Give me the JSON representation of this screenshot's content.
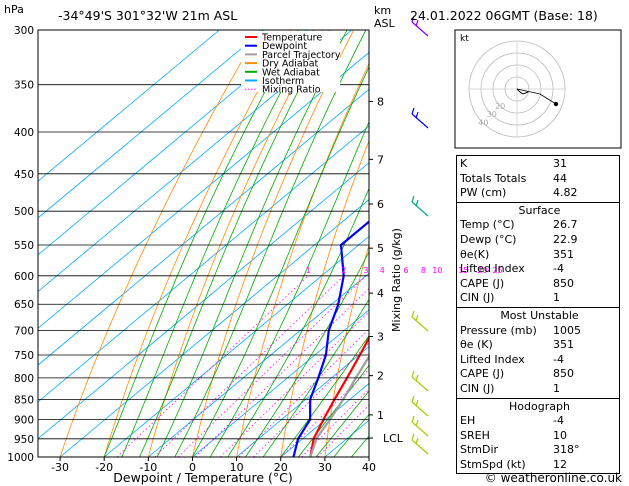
{
  "header": {
    "location": "-34°49'S  301°32'W  21m  ASL",
    "datetime": "24.01.2022  06GMT  (Base: 18)",
    "hpa_unit": "hPa",
    "km_unit": "km",
    "asl_unit": "ASL"
  },
  "chart_data": {
    "type": "line",
    "title": "",
    "xlabel": "Dewpoint / Temperature (°C)",
    "ylabel": "hPa",
    "right_label": "Mixing Ratio (g/kg)",
    "xlim": [
      -35,
      40
    ],
    "ylim": [
      1000,
      300
    ],
    "pressure_ticks": [
      300,
      350,
      400,
      450,
      500,
      550,
      600,
      650,
      700,
      750,
      800,
      850,
      900,
      950,
      1000
    ],
    "temp_ticks": [
      -30,
      -20,
      -10,
      0,
      10,
      20,
      30,
      40
    ],
    "km_ticks": [
      {
        "km": "8",
        "p": 367
      },
      {
        "km": "7",
        "p": 432
      },
      {
        "km": "6",
        "p": 490
      },
      {
        "km": "5",
        "p": 555
      },
      {
        "km": "4",
        "p": 630
      },
      {
        "km": "3",
        "p": 712
      },
      {
        "km": "2",
        "p": 795
      },
      {
        "km": "1",
        "p": 888
      }
    ],
    "lcl": {
      "label": "LCL",
      "p": 948
    },
    "mixing_ratio_labels": [
      "1",
      "2",
      "3",
      "4",
      "6",
      "8",
      "10",
      "15",
      "20",
      "25"
    ],
    "mixing_ratio_values": [
      1,
      2,
      3,
      4,
      6,
      8,
      10,
      15,
      20,
      25
    ],
    "legend": {
      "placement": "top-left",
      "items": [
        {
          "name": "Temperature",
          "color": "#ff0000"
        },
        {
          "name": "Dewpoint",
          "color": "#0000ff"
        },
        {
          "name": "Parcel Trajectory",
          "color": "#a0a0a0"
        },
        {
          "name": "Dry Adiabat",
          "color": "#ff8c00"
        },
        {
          "name": "Wet Adiabat",
          "color": "#00aa00"
        },
        {
          "name": "Isotherm",
          "color": "#00aaff"
        },
        {
          "name": "Mixing Ratio",
          "color": "#ff00ff"
        }
      ]
    },
    "series": [
      {
        "name": "Temperature",
        "color": "#ff0000",
        "points": [
          [
            1000,
            26.7
          ],
          [
            950,
            22.5
          ],
          [
            900,
            19.5
          ],
          [
            850,
            16.5
          ],
          [
            800,
            13.5
          ],
          [
            750,
            10.2
          ],
          [
            700,
            6.5
          ],
          [
            650,
            3.0
          ],
          [
            600,
            -1.0
          ],
          [
            550,
            -5.0
          ],
          [
            500,
            -11.0
          ],
          [
            450,
            -18.0
          ],
          [
            400,
            -24.0
          ],
          [
            370,
            -29.0
          ]
        ]
      },
      {
        "name": "Dewpoint",
        "color": "#0000ff",
        "points": [
          [
            1000,
            22.9
          ],
          [
            950,
            19.0
          ],
          [
            900,
            16.5
          ],
          [
            850,
            11.0
          ],
          [
            800,
            7.0
          ],
          [
            750,
            2.5
          ],
          [
            700,
            -3.5
          ],
          [
            650,
            -8.5
          ],
          [
            600,
            -15.0
          ],
          [
            550,
            -24.0
          ],
          [
            500,
            -24.0
          ],
          [
            450,
            -23.0
          ],
          [
            400,
            -25.0
          ],
          [
            370,
            -30.0
          ]
        ]
      },
      {
        "name": "Parcel Trajectory",
        "color": "#a0a0a0",
        "points": [
          [
            1000,
            26.7
          ],
          [
            948,
            23.0
          ],
          [
            900,
            21.0
          ],
          [
            850,
            18.5
          ],
          [
            800,
            15.5
          ],
          [
            750,
            12.5
          ],
          [
            700,
            9.0
          ],
          [
            650,
            5.5
          ],
          [
            600,
            1.5
          ],
          [
            550,
            -2.5
          ],
          [
            500,
            -7.5
          ],
          [
            450,
            -13.5
          ],
          [
            400,
            -20.0
          ],
          [
            370,
            -24.5
          ]
        ]
      }
    ]
  },
  "hodograph": {
    "label": "kt",
    "ring_labels": [
      "10",
      "20",
      "30",
      "40"
    ]
  },
  "indices": [
    {
      "label": "K",
      "value": "31"
    },
    {
      "label": "Totals Totals",
      "value": "44"
    },
    {
      "label": "PW (cm)",
      "value": "4.82"
    }
  ],
  "surface": {
    "title": "Surface",
    "rows": [
      {
        "label": "Temp (°C)",
        "value": "26.7"
      },
      {
        "label": "Dewp (°C)",
        "value": "22.9"
      },
      {
        "label": "θe(K)",
        "value": "351"
      },
      {
        "label": "Lifted Index",
        "value": "-4"
      },
      {
        "label": "CAPE (J)",
        "value": "850"
      },
      {
        "label": "CIN (J)",
        "value": "1"
      }
    ]
  },
  "most_unstable": {
    "title": "Most Unstable",
    "rows": [
      {
        "label": "Pressure (mb)",
        "value": "1005"
      },
      {
        "label": "θe (K)",
        "value": "351"
      },
      {
        "label": "Lifted Index",
        "value": "-4"
      },
      {
        "label": "CAPE (J)",
        "value": "850"
      },
      {
        "label": "CIN (J)",
        "value": "1"
      }
    ]
  },
  "hodograph_table": {
    "title": "Hodograph",
    "rows": [
      {
        "label": "EH",
        "value": "-4"
      },
      {
        "label": "SREH",
        "value": "10"
      },
      {
        "label": "StmDir",
        "value": "318°"
      },
      {
        "label": "StmSpd (kt)",
        "value": "12"
      }
    ]
  },
  "footer": {
    "credit": "© weatheronline.co.uk"
  }
}
